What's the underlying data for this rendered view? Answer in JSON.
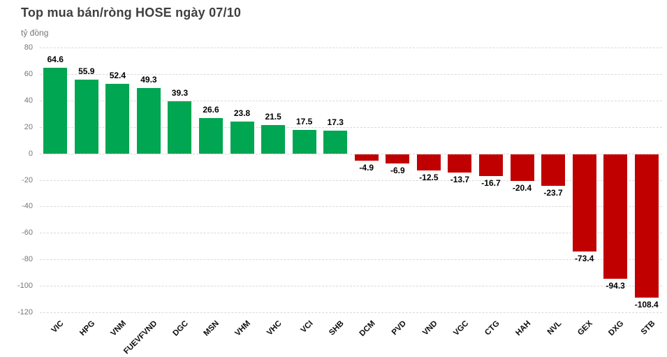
{
  "header": {
    "title": "Top mua bán/ròng HOSE ngày 07/10",
    "unit_label": "tỷ đồng"
  },
  "colors": {
    "positive_bar": "#00a651",
    "negative_bar": "#c00000",
    "gridline": "#d9d9d9",
    "tick_text": "#767676",
    "value_label_text": "#000000",
    "title_text": "#3f3f3f"
  },
  "chart_data": {
    "type": "bar",
    "title": "Top mua bán/ròng HOSE ngày 07/10",
    "xlabel": "",
    "ylabel": "tỷ đồng",
    "categories": [
      "VIC",
      "HPG",
      "VNM",
      "FUEVFVND",
      "DGC",
      "MSN",
      "VHM",
      "VHC",
      "VCI",
      "SHB",
      "DCM",
      "PVD",
      "VND",
      "VGC",
      "CTG",
      "HAH",
      "NVL",
      "GEX",
      "DXG",
      "STB"
    ],
    "values": [
      64.6,
      55.9,
      52.4,
      49.3,
      39.3,
      26.6,
      23.8,
      21.5,
      17.5,
      17.3,
      -4.9,
      -6.9,
      -12.5,
      -13.7,
      -16.7,
      -20.4,
      -23.7,
      -73.4,
      -94.3,
      -108.4
    ],
    "ylim": [
      -120,
      80
    ],
    "ytick_step": 20,
    "ytick_labels": [
      "80",
      "60",
      "40",
      "20",
      "0",
      "-20",
      "-40",
      "-60",
      "-80",
      "-100",
      "-120"
    ],
    "grid": true,
    "legend_position": "none",
    "positive_color": "#00a651",
    "negative_color": "#c00000"
  }
}
